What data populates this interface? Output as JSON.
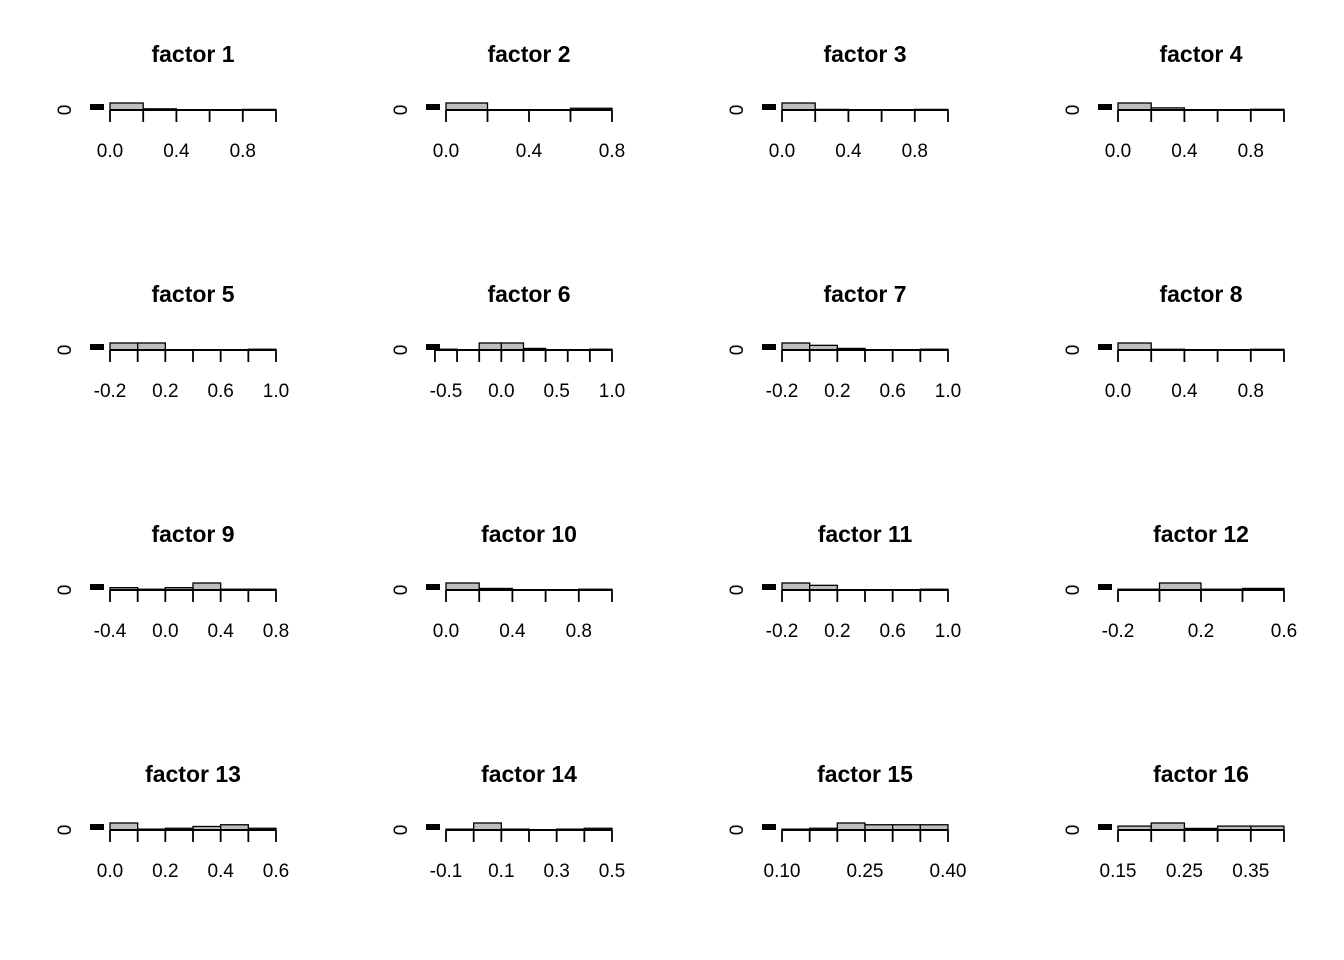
{
  "chart_data": [
    {
      "type": "bar",
      "title": "factor 1",
      "ylabel": "0",
      "xlim": [
        0,
        1
      ],
      "xticks": [
        "0.0",
        "0.4",
        "0.8"
      ],
      "xtick_values": [
        0,
        0.4,
        0.8
      ],
      "bin_edges": [
        0,
        0.2,
        0.4,
        0.6,
        0.8,
        1.0
      ],
      "values": [
        12,
        2,
        0,
        0,
        1
      ]
    },
    {
      "type": "bar",
      "title": "factor 2",
      "ylabel": "0",
      "xlim": [
        0,
        0.8
      ],
      "xticks": [
        "0.0",
        "0.4",
        "0.8"
      ],
      "xtick_values": [
        0,
        0.4,
        0.8
      ],
      "bin_edges": [
        0,
        0.2,
        0.4,
        0.6,
        0.8
      ],
      "values": [
        12,
        0,
        0,
        3
      ]
    },
    {
      "type": "bar",
      "title": "factor 3",
      "ylabel": "0",
      "xlim": [
        0,
        1
      ],
      "xticks": [
        "0.0",
        "0.4",
        "0.8"
      ],
      "xtick_values": [
        0,
        0.4,
        0.8
      ],
      "bin_edges": [
        0,
        0.2,
        0.4,
        0.6,
        0.8,
        1.0
      ],
      "values": [
        12,
        1,
        0,
        0,
        1
      ]
    },
    {
      "type": "bar",
      "title": "factor 4",
      "ylabel": "0",
      "xlim": [
        0,
        1
      ],
      "xticks": [
        "0.0",
        "0.4",
        "0.8"
      ],
      "xtick_values": [
        0,
        0.4,
        0.8
      ],
      "bin_edges": [
        0,
        0.2,
        0.4,
        0.6,
        0.8,
        1.0
      ],
      "values": [
        10,
        3,
        0,
        0,
        1
      ]
    },
    {
      "type": "bar",
      "title": "factor 5",
      "ylabel": "0",
      "xlim": [
        -0.2,
        1.0
      ],
      "xticks": [
        "-0.2",
        "0.2",
        "0.6",
        "1.0"
      ],
      "xtick_values": [
        -0.2,
        0.2,
        0.6,
        1.0
      ],
      "bin_edges": [
        -0.2,
        0,
        0.2,
        0.4,
        0.6,
        0.8,
        1.0
      ],
      "values": [
        9,
        9,
        0,
        0,
        0,
        1
      ]
    },
    {
      "type": "bar",
      "title": "factor 6",
      "ylabel": "0",
      "xlim": [
        -0.5,
        1.0
      ],
      "xticks": [
        "-0.5",
        "0.0",
        "0.5",
        "1.0"
      ],
      "xtick_values": [
        -0.5,
        0,
        0.5,
        1.0
      ],
      "bin_edges": [
        -0.6,
        -0.4,
        -0.2,
        0,
        0.2,
        0.4,
        0.6,
        0.8,
        1.0
      ],
      "values": [
        1,
        0,
        9,
        9,
        2,
        0,
        0,
        1
      ]
    },
    {
      "type": "bar",
      "title": "factor 7",
      "ylabel": "0",
      "xlim": [
        -0.2,
        1.0
      ],
      "xticks": [
        "-0.2",
        "0.2",
        "0.6",
        "1.0"
      ],
      "xtick_values": [
        -0.2,
        0.2,
        0.6,
        1.0
      ],
      "bin_edges": [
        -0.2,
        0,
        0.2,
        0.4,
        0.6,
        0.8,
        1.0
      ],
      "values": [
        9,
        6,
        2,
        0,
        0,
        1
      ]
    },
    {
      "type": "bar",
      "title": "factor 8",
      "ylabel": "0",
      "xlim": [
        0,
        1
      ],
      "xticks": [
        "0.0",
        "0.4",
        "0.8"
      ],
      "xtick_values": [
        0,
        0.4,
        0.8
      ],
      "bin_edges": [
        0,
        0.2,
        0.4,
        0.6,
        0.8,
        1.0
      ],
      "values": [
        10,
        1,
        0,
        0,
        1
      ]
    },
    {
      "type": "bar",
      "title": "factor 9",
      "ylabel": "0",
      "xlim": [
        -0.4,
        0.8
      ],
      "xticks": [
        "-0.4",
        "0.0",
        "0.4",
        "0.8"
      ],
      "xtick_values": [
        -0.4,
        0,
        0.4,
        0.8
      ],
      "bin_edges": [
        -0.4,
        -0.2,
        0,
        0.2,
        0.4,
        0.6,
        0.8
      ],
      "values": [
        3,
        1,
        3,
        9,
        1,
        1
      ]
    },
    {
      "type": "bar",
      "title": "factor 10",
      "ylabel": "0",
      "xlim": [
        0,
        1
      ],
      "xticks": [
        "0.0",
        "0.4",
        "0.8"
      ],
      "xtick_values": [
        0,
        0.4,
        0.8
      ],
      "bin_edges": [
        0,
        0.2,
        0.4,
        0.6,
        0.8,
        1.0
      ],
      "values": [
        9,
        2,
        0,
        0,
        1
      ]
    },
    {
      "type": "bar",
      "title": "factor 11",
      "ylabel": "0",
      "xlim": [
        -0.2,
        1.0
      ],
      "xticks": [
        "-0.2",
        "0.2",
        "0.6",
        "1.0"
      ],
      "xtick_values": [
        -0.2,
        0.2,
        0.6,
        1.0
      ],
      "bin_edges": [
        -0.2,
        0,
        0.2,
        0.4,
        0.6,
        0.8,
        1.0
      ],
      "values": [
        9,
        6,
        0,
        0,
        0,
        1
      ]
    },
    {
      "type": "bar",
      "title": "factor 12",
      "ylabel": "0",
      "xlim": [
        -0.2,
        0.6
      ],
      "xticks": [
        "-0.2",
        "0.2",
        "0.6"
      ],
      "xtick_values": [
        -0.2,
        0.2,
        0.6
      ],
      "bin_edges": [
        -0.2,
        0,
        0.2,
        0.4,
        0.6
      ],
      "values": [
        1,
        9,
        1,
        2
      ]
    },
    {
      "type": "bar",
      "title": "factor 13",
      "ylabel": "0",
      "xlim": [
        0,
        0.6
      ],
      "xticks": [
        "0.0",
        "0.2",
        "0.4",
        "0.6"
      ],
      "xtick_values": [
        0,
        0.2,
        0.4,
        0.6
      ],
      "bin_edges": [
        0,
        0.1,
        0.2,
        0.3,
        0.4,
        0.5,
        0.6
      ],
      "values": [
        8,
        1,
        2,
        4,
        6,
        2
      ]
    },
    {
      "type": "bar",
      "title": "factor 14",
      "ylabel": "0",
      "xlim": [
        -0.1,
        0.5
      ],
      "xticks": [
        "-0.1",
        "0.1",
        "0.3",
        "0.5"
      ],
      "xtick_values": [
        -0.1,
        0.1,
        0.3,
        0.5
      ],
      "bin_edges": [
        -0.1,
        0,
        0.1,
        0.2,
        0.3,
        0.4,
        0.5
      ],
      "values": [
        1,
        8,
        1,
        0,
        1,
        2
      ]
    },
    {
      "type": "bar",
      "title": "factor 15",
      "ylabel": "0",
      "xlim": [
        0.1,
        0.4
      ],
      "xticks": [
        "0.10",
        "0.25",
        "0.40"
      ],
      "xtick_values": [
        0.1,
        0.25,
        0.4
      ],
      "bin_edges": [
        0.1,
        0.15,
        0.2,
        0.25,
        0.3,
        0.35,
        0.4
      ],
      "values": [
        1,
        2,
        8,
        6,
        6,
        6
      ]
    },
    {
      "type": "bar",
      "title": "factor 16",
      "ylabel": "0",
      "xlim": [
        0.15,
        0.4
      ],
      "xticks": [
        "0.15",
        "0.25",
        "0.35"
      ],
      "xtick_values": [
        0.15,
        0.25,
        0.35
      ],
      "bin_edges": [
        0.15,
        0.2,
        0.25,
        0.3,
        0.35,
        0.4
      ],
      "values": [
        5,
        9,
        2,
        5,
        5
      ]
    }
  ],
  "style": {
    "bar_fill": "#bebebe",
    "stroke": "#000000",
    "boxplot_fill": "#000000"
  }
}
